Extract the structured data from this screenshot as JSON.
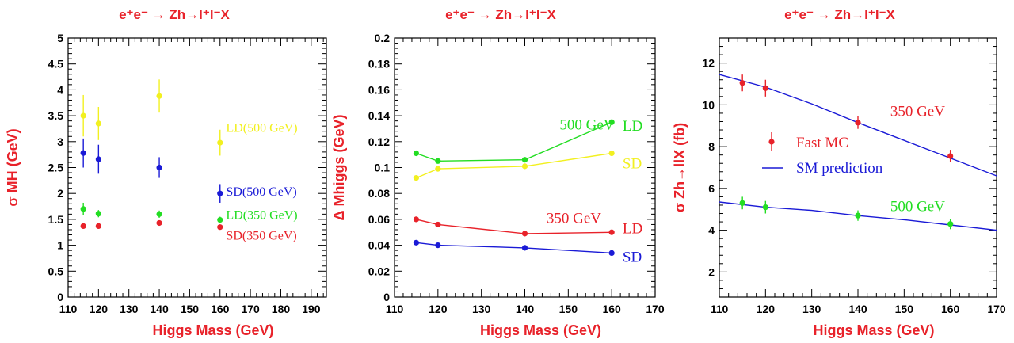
{
  "colors": {
    "red": "#e8222a",
    "blue": "#1a1ad6",
    "green": "#22dd22",
    "yellow": "#f2f020",
    "axis": "#000000"
  },
  "chart_data": [
    {
      "type": "scatter",
      "title": "e⁺e⁻ → Zh→l⁺l⁻X",
      "xlabel": "Higgs Mass (GeV)",
      "ylabel": "σ MH (GeV)",
      "xlim": [
        110,
        195
      ],
      "ylim": [
        0,
        5
      ],
      "xticks": [
        110,
        120,
        130,
        140,
        150,
        160,
        170,
        180,
        190
      ],
      "yticks": [
        0,
        0.5,
        1,
        1.5,
        2,
        2.5,
        3,
        3.5,
        4,
        4.5,
        5
      ],
      "series": [
        {
          "name": "LD(500 GeV)",
          "color": "yellow",
          "points": [
            [
              115,
              3.5,
              0.4
            ],
            [
              120,
              3.35,
              0.32
            ],
            [
              140,
              3.88,
              0.32
            ],
            [
              160,
              2.98,
              0.25
            ]
          ]
        },
        {
          "name": "SD(500 GeV)",
          "color": "blue",
          "points": [
            [
              115,
              2.78,
              0.28
            ],
            [
              120,
              2.66,
              0.28
            ],
            [
              140,
              2.5,
              0.2
            ],
            [
              160,
              2.0,
              0.18
            ]
          ]
        },
        {
          "name": "LD(350 GeV)",
          "color": "green",
          "points": [
            [
              115,
              1.7,
              0.12
            ],
            [
              120,
              1.61,
              0.07
            ],
            [
              140,
              1.6,
              0.07
            ],
            [
              160,
              1.49,
              0.06
            ]
          ]
        },
        {
          "name": "SD(350 GeV)",
          "color": "red",
          "points": [
            [
              115,
              1.37,
              0.04
            ],
            [
              120,
              1.37,
              0.04
            ],
            [
              140,
              1.43,
              0.04
            ],
            [
              160,
              1.35,
              0.04
            ]
          ]
        }
      ],
      "labels": [
        {
          "text": "LD(500 GeV)",
          "color": "yellow",
          "x": 162,
          "y": 3.28
        },
        {
          "text": "SD(500 GeV)",
          "color": "blue",
          "x": 162,
          "y": 2.05
        },
        {
          "text": "LD(350 GeV)",
          "color": "green",
          "x": 162,
          "y": 1.6
        },
        {
          "text": "SD(350 GeV)",
          "color": "red",
          "x": 162,
          "y": 1.2
        }
      ]
    },
    {
      "type": "line",
      "title": "e⁺e⁻ → Zh→l⁺l⁻X",
      "xlabel": "Higgs Mass (GeV)",
      "ylabel": "Δ Mhiggs (GeV)",
      "xlim": [
        110,
        170
      ],
      "ylim": [
        0,
        0.2
      ],
      "xticks": [
        110,
        120,
        130,
        140,
        150,
        160,
        170
      ],
      "yticks": [
        0,
        0.02,
        0.04,
        0.06,
        0.08,
        0.1,
        0.12,
        0.14,
        0.16,
        0.18,
        0.2
      ],
      "series": [
        {
          "name": "LD",
          "color": "green",
          "x": [
            115,
            120,
            140,
            160
          ],
          "y": [
            0.111,
            0.105,
            0.106,
            0.135
          ]
        },
        {
          "name": "SD",
          "color": "yellow",
          "x": [
            115,
            120,
            140,
            160
          ],
          "y": [
            0.092,
            0.099,
            0.101,
            0.111
          ]
        },
        {
          "name": "LD",
          "color": "red",
          "x": [
            115,
            120,
            140,
            160
          ],
          "y": [
            0.06,
            0.056,
            0.049,
            0.05
          ]
        },
        {
          "name": "SD",
          "color": "blue",
          "x": [
            115,
            120,
            140,
            160
          ],
          "y": [
            0.042,
            0.04,
            0.038,
            0.034
          ]
        }
      ],
      "labels": [
        {
          "text": "500 GeV",
          "color": "green",
          "x": 148,
          "y": 0.133
        },
        {
          "text": "LD",
          "color": "green",
          "x": 162.5,
          "y": 0.132
        },
        {
          "text": "SD",
          "color": "yellow",
          "x": 162.5,
          "y": 0.103
        },
        {
          "text": "350 GeV",
          "color": "red",
          "x": 145,
          "y": 0.061
        },
        {
          "text": "LD",
          "color": "red",
          "x": 162.5,
          "y": 0.053
        },
        {
          "text": "SD",
          "color": "blue",
          "x": 162.5,
          "y": 0.031
        }
      ]
    },
    {
      "type": "line",
      "title": "e⁺e⁻ → Zh→l⁺l⁻X",
      "xlabel": "Higgs Mass (GeV)",
      "ylabel": "σ Zh→llX (fb)",
      "xlim": [
        110,
        170
      ],
      "ylim": [
        0.8,
        13.2
      ],
      "xticks": [
        110,
        120,
        130,
        140,
        150,
        160,
        170
      ],
      "yticks": [
        2,
        4,
        6,
        8,
        10,
        12
      ],
      "series": [
        {
          "name": "SM prediction",
          "color": "blue",
          "x": [
            110,
            120,
            130,
            140,
            150,
            160,
            170
          ],
          "y": [
            11.45,
            10.85,
            10.05,
            9.15,
            8.3,
            7.45,
            6.6
          ]
        },
        {
          "name": "SM prediction",
          "color": "blue",
          "x": [
            110,
            120,
            130,
            140,
            150,
            160,
            170
          ],
          "y": [
            5.35,
            5.1,
            4.95,
            4.7,
            4.5,
            4.25,
            4.0
          ]
        },
        {
          "name": "Fast MC",
          "color": "red",
          "points": [
            [
              115,
              11.05,
              0.4
            ],
            [
              120,
              10.8,
              0.4
            ],
            [
              140,
              9.15,
              0.3
            ],
            [
              160,
              7.55,
              0.3
            ]
          ]
        },
        {
          "name": "Fast MC",
          "color": "green",
          "points": [
            [
              115,
              5.3,
              0.3
            ],
            [
              120,
              5.1,
              0.3
            ],
            [
              140,
              4.7,
              0.25
            ],
            [
              160,
              4.3,
              0.25
            ]
          ]
        }
      ],
      "legend": [
        {
          "text": "Fast MC",
          "color": "red",
          "kind": "point"
        },
        {
          "text": "SM prediction",
          "color": "blue",
          "kind": "line"
        }
      ],
      "labels": [
        {
          "text": "350 GeV",
          "color": "red",
          "x": 147,
          "y": 9.7
        },
        {
          "text": "500 GeV",
          "color": "green",
          "x": 147,
          "y": 5.15
        }
      ]
    }
  ]
}
